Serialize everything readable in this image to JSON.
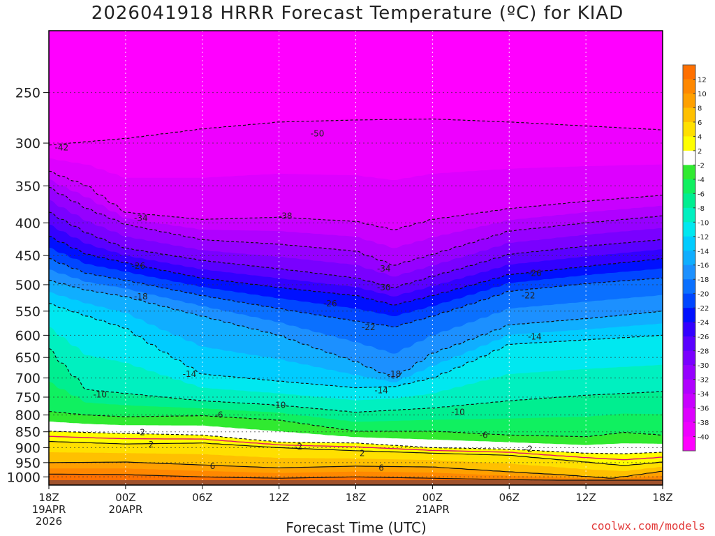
{
  "page": {
    "title": "2026041918 HRRR Forecast Temperature (ºC) for KIAD",
    "credit": "coolwx.com/models"
  },
  "chart_data": {
    "type": "heatmap",
    "title": "2026041918 HRRR Forecast Temperature (ºC) for KIAD",
    "xlabel": "Forecast Time (UTC)",
    "ylabel": "",
    "x_range_hours": [
      0,
      48
    ],
    "x_ticks": [
      {
        "hour": 0,
        "lines": [
          "18Z",
          "19APR",
          "2026"
        ]
      },
      {
        "hour": 6,
        "lines": [
          "00Z",
          "20APR"
        ]
      },
      {
        "hour": 12,
        "lines": [
          "06Z"
        ]
      },
      {
        "hour": 18,
        "lines": [
          "12Z"
        ]
      },
      {
        "hour": 24,
        "lines": [
          "18Z"
        ]
      },
      {
        "hour": 30,
        "lines": [
          "00Z",
          "21APR"
        ]
      },
      {
        "hour": 36,
        "lines": [
          "06Z"
        ]
      },
      {
        "hour": 42,
        "lines": [
          "12Z"
        ]
      },
      {
        "hour": 48,
        "lines": [
          "18Z"
        ]
      }
    ],
    "y_scale": "log-pressure",
    "y_range_hpa": [
      200,
      1030
    ],
    "y_ticks": [
      "250",
      "300",
      "350",
      "400",
      "450",
      "500",
      "550",
      "600",
      "650",
      "700",
      "750",
      "800",
      "850",
      "900",
      "950",
      "1000"
    ],
    "colorbar": {
      "levels": [
        -40,
        -38,
        -36,
        -34,
        -32,
        -30,
        -28,
        -26,
        -24,
        -22,
        -20,
        -18,
        -16,
        -14,
        -12,
        -10,
        -8,
        -6,
        -4,
        -2,
        2,
        4,
        6,
        8,
        10,
        12
      ],
      "labels": [
        "12",
        "10",
        "8",
        "6",
        "4",
        "2",
        "-2",
        "-4",
        "-6",
        "-8",
        "-10",
        "-12",
        "-14",
        "-16",
        "-18",
        "-20",
        "-22",
        "-24",
        "-26",
        "-28",
        "-30",
        "-32",
        "-34",
        "-36",
        "-38",
        "-40"
      ],
      "colors": {
        "below_-40": "#ff00ff",
        "-40": "#ee00ff",
        "-38": "#dd00ff",
        "-36": "#c800ff",
        "-34": "#b000ff",
        "-32": "#9600ff",
        "-30": "#7a00ff",
        "-28": "#5a00ff",
        "-26": "#3300ff",
        "-24": "#0010ff",
        "-22": "#0046ff",
        "-20": "#0a70ff",
        "-18": "#1c90ff",
        "-16": "#10aeff",
        "-14": "#00ccff",
        "-12": "#00e8f0",
        "-10": "#00f0c0",
        "-8": "#00ee90",
        "-6": "#10f060",
        "-4": "#30ea30",
        "-2": "#ffffff",
        "2": "#ffff00",
        "4": "#ffe000",
        "6": "#ffc000",
        "8": "#ffa000",
        "10": "#ff8800",
        "12": "#ff7000",
        "surface": "#a0522d"
      }
    },
    "isotherm_profiles": [
      {
        "temp": -42,
        "points": [
          [
            0,
            302
          ],
          [
            6,
            295
          ],
          [
            12,
            285
          ],
          [
            18,
            278
          ],
          [
            24,
            276
          ],
          [
            30,
            275
          ],
          [
            36,
            278
          ],
          [
            42,
            282
          ],
          [
            48,
            286
          ]
        ]
      },
      {
        "temp": -38,
        "points": [
          [
            0,
            332
          ],
          [
            3,
            350
          ],
          [
            6,
            385
          ],
          [
            12,
            395
          ],
          [
            18,
            392
          ],
          [
            24,
            398
          ],
          [
            27,
            410
          ],
          [
            30,
            395
          ],
          [
            36,
            380
          ],
          [
            42,
            370
          ],
          [
            48,
            362
          ]
        ]
      },
      {
        "temp": -34,
        "points": [
          [
            0,
            352
          ],
          [
            3,
            380
          ],
          [
            6,
            402
          ],
          [
            12,
            425
          ],
          [
            18,
            432
          ],
          [
            24,
            443
          ],
          [
            27,
            466
          ],
          [
            30,
            448
          ],
          [
            36,
            412
          ],
          [
            42,
            400
          ],
          [
            48,
            390
          ]
        ]
      },
      {
        "temp": -30,
        "points": [
          [
            0,
            385
          ],
          [
            3,
            415
          ],
          [
            6,
            438
          ],
          [
            12,
            458
          ],
          [
            18,
            472
          ],
          [
            24,
            488
          ],
          [
            27,
            505
          ],
          [
            30,
            485
          ],
          [
            36,
            448
          ],
          [
            42,
            435
          ],
          [
            48,
            425
          ]
        ]
      },
      {
        "temp": -26,
        "points": [
          [
            0,
            420
          ],
          [
            3,
            448
          ],
          [
            6,
            462
          ],
          [
            12,
            488
          ],
          [
            18,
            505
          ],
          [
            24,
            520
          ],
          [
            27,
            538
          ],
          [
            30,
            520
          ],
          [
            36,
            482
          ],
          [
            42,
            468
          ],
          [
            48,
            455
          ]
        ]
      },
      {
        "temp": -22,
        "points": [
          [
            0,
            455
          ],
          [
            3,
            480
          ],
          [
            6,
            492
          ],
          [
            12,
            520
          ],
          [
            18,
            545
          ],
          [
            24,
            570
          ],
          [
            27,
            582
          ],
          [
            30,
            560
          ],
          [
            36,
            512
          ],
          [
            42,
            498
          ],
          [
            48,
            488
          ]
        ]
      },
      {
        "temp": -18,
        "points": [
          [
            0,
            492
          ],
          [
            3,
            510
          ],
          [
            6,
            522
          ],
          [
            12,
            560
          ],
          [
            18,
            600
          ],
          [
            24,
            660
          ],
          [
            27,
            700
          ],
          [
            30,
            640
          ],
          [
            36,
            578
          ],
          [
            42,
            565
          ],
          [
            48,
            550
          ]
        ]
      },
      {
        "temp": -14,
        "points": [
          [
            0,
            535
          ],
          [
            3,
            560
          ],
          [
            6,
            585
          ],
          [
            12,
            690
          ],
          [
            18,
            708
          ],
          [
            24,
            725
          ],
          [
            27,
            722
          ],
          [
            30,
            700
          ],
          [
            36,
            620
          ],
          [
            42,
            610
          ],
          [
            48,
            600
          ]
        ]
      },
      {
        "temp": -10,
        "points": [
          [
            0,
            630
          ],
          [
            3,
            730
          ],
          [
            6,
            740
          ],
          [
            12,
            760
          ],
          [
            18,
            772
          ],
          [
            24,
            792
          ],
          [
            30,
            780
          ],
          [
            36,
            760
          ],
          [
            42,
            745
          ],
          [
            48,
            735
          ]
        ]
      },
      {
        "temp": -6,
        "points": [
          [
            0,
            790
          ],
          [
            3,
            800
          ],
          [
            6,
            805
          ],
          [
            12,
            802
          ],
          [
            18,
            815
          ],
          [
            24,
            848
          ],
          [
            30,
            848
          ],
          [
            36,
            860
          ],
          [
            42,
            865
          ],
          [
            45,
            852
          ],
          [
            48,
            860
          ]
        ]
      },
      {
        "temp": -2,
        "points": [
          [
            0,
            848
          ],
          [
            3,
            852
          ],
          [
            6,
            855
          ],
          [
            12,
            860
          ],
          [
            18,
            882
          ],
          [
            24,
            885
          ],
          [
            30,
            900
          ],
          [
            36,
            905
          ],
          [
            42,
            918
          ],
          [
            45,
            920
          ],
          [
            48,
            915
          ]
        ]
      },
      {
        "temp": 2,
        "points": [
          [
            0,
            880
          ],
          [
            6,
            888
          ],
          [
            12,
            885
          ],
          [
            18,
            900
          ],
          [
            24,
            910
          ],
          [
            30,
            918
          ],
          [
            36,
            925
          ],
          [
            42,
            948
          ],
          [
            45,
            960
          ],
          [
            48,
            948
          ]
        ]
      },
      {
        "temp": 6,
        "points": [
          [
            0,
            950
          ],
          [
            6,
            948
          ],
          [
            12,
            958
          ],
          [
            18,
            968
          ],
          [
            24,
            962
          ],
          [
            30,
            965
          ],
          [
            36,
            982
          ],
          [
            40,
            992
          ],
          [
            44,
            1005
          ],
          [
            48,
            980
          ]
        ]
      },
      {
        "temp": 10,
        "points": [
          [
            0,
            990
          ],
          [
            6,
            992
          ],
          [
            12,
            1000
          ],
          [
            18,
            1005
          ],
          [
            24,
            1000
          ],
          [
            30,
            1005
          ],
          [
            36,
            1010
          ],
          [
            40,
            1012
          ],
          [
            48,
            1012
          ]
        ]
      }
    ],
    "surface_pressure_hpa": 1012,
    "contour_labels": [
      {
        "text": "-42",
        "hour": 1.0,
        "hpa": 305
      },
      {
        "text": "-50",
        "hour": 21.0,
        "hpa": 290
      },
      {
        "text": "-38",
        "hour": 18.5,
        "hpa": 390
      },
      {
        "text": "-34",
        "hour": 7.2,
        "hpa": 393
      },
      {
        "text": "-34",
        "hour": 26.2,
        "hpa": 472
      },
      {
        "text": "-30",
        "hour": 26.2,
        "hpa": 505
      },
      {
        "text": "-26",
        "hour": 7.0,
        "hpa": 467
      },
      {
        "text": "-26",
        "hour": 22.0,
        "hpa": 535
      },
      {
        "text": "-26",
        "hour": 38.0,
        "hpa": 480
      },
      {
        "text": "-22",
        "hour": 25.0,
        "hpa": 583
      },
      {
        "text": "-22",
        "hour": 37.5,
        "hpa": 520
      },
      {
        "text": "-18",
        "hour": 7.2,
        "hpa": 522
      },
      {
        "text": "-18",
        "hour": 27.0,
        "hpa": 690
      },
      {
        "text": "-14",
        "hour": 11.0,
        "hpa": 690
      },
      {
        "text": "-14",
        "hour": 26.0,
        "hpa": 732
      },
      {
        "text": "-14",
        "hour": 38.0,
        "hpa": 603
      },
      {
        "text": "-10",
        "hour": 4.0,
        "hpa": 743
      },
      {
        "text": "-10",
        "hour": 18.0,
        "hpa": 772
      },
      {
        "text": "-10",
        "hour": 32.0,
        "hpa": 792
      },
      {
        "text": "-6",
        "hour": 13.3,
        "hpa": 800
      },
      {
        "text": "-6",
        "hour": 34.0,
        "hpa": 860
      },
      {
        "text": "-2",
        "hour": 7.2,
        "hpa": 852
      },
      {
        "text": "-2",
        "hour": 19.5,
        "hpa": 897
      },
      {
        "text": "-2",
        "hour": 37.5,
        "hpa": 905
      },
      {
        "text": "2",
        "hour": 8.0,
        "hpa": 890
      },
      {
        "text": "2",
        "hour": 24.5,
        "hpa": 918
      },
      {
        "text": "6",
        "hour": 12.8,
        "hpa": 962
      },
      {
        "text": "6",
        "hour": 26.0,
        "hpa": 968
      }
    ]
  }
}
